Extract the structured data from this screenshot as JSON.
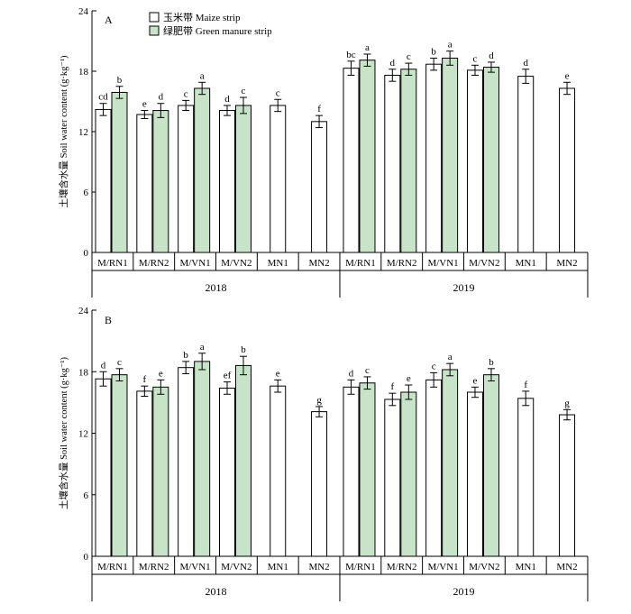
{
  "chart_data": [
    {
      "type": "bar",
      "panel_label": "A",
      "ylabel": "土壤含水量 Soil water content (g·kg⁻¹)",
      "ylim": [
        0,
        24
      ],
      "yticks": [
        0,
        6,
        12,
        18,
        24
      ],
      "grid": false,
      "legend_position": "top-left",
      "series_names": [
        "玉米带 Maize strip",
        "绿肥带 Green manure strip"
      ],
      "colors": {
        "maize": "#ffffff",
        "green_manure": "#c8e4c8"
      },
      "years": [
        {
          "label": "2018",
          "groups": [
            {
              "name": "M/RN1",
              "maize": {
                "value": 14.2,
                "error": 0.6,
                "letter": "cd"
              },
              "green": {
                "value": 15.9,
                "error": 0.6,
                "letter": "b"
              }
            },
            {
              "name": "M/RN2",
              "maize": {
                "value": 13.7,
                "error": 0.4,
                "letter": "e"
              },
              "green": {
                "value": 14.1,
                "error": 0.7,
                "letter": "d"
              }
            },
            {
              "name": "M/VN1",
              "maize": {
                "value": 14.6,
                "error": 0.5,
                "letter": "c"
              },
              "green": {
                "value": 16.3,
                "error": 0.6,
                "letter": "a"
              }
            },
            {
              "name": "M/VN2",
              "maize": {
                "value": 14.1,
                "error": 0.5,
                "letter": "d"
              },
              "green": {
                "value": 14.6,
                "error": 0.8,
                "letter": "c"
              }
            },
            {
              "name": "MN1",
              "maize": {
                "value": 14.6,
                "error": 0.6,
                "letter": "c"
              },
              "green": null
            },
            {
              "name": "MN2",
              "maize": {
                "value": 13.0,
                "error": 0.6,
                "letter": "f"
              },
              "green": null
            }
          ]
        },
        {
          "label": "2019",
          "groups": [
            {
              "name": "M/RN1",
              "maize": {
                "value": 18.3,
                "error": 0.7,
                "letter": "bc"
              },
              "green": {
                "value": 19.1,
                "error": 0.6,
                "letter": "a"
              }
            },
            {
              "name": "M/RN2",
              "maize": {
                "value": 17.6,
                "error": 0.6,
                "letter": "d"
              },
              "green": {
                "value": 18.2,
                "error": 0.6,
                "letter": "c"
              }
            },
            {
              "name": "M/VN1",
              "maize": {
                "value": 18.7,
                "error": 0.6,
                "letter": "b"
              },
              "green": {
                "value": 19.3,
                "error": 0.7,
                "letter": "a"
              }
            },
            {
              "name": "M/VN2",
              "maize": {
                "value": 18.1,
                "error": 0.5,
                "letter": "c"
              },
              "green": {
                "value": 18.4,
                "error": 0.5,
                "letter": "d"
              }
            },
            {
              "name": "MN1",
              "maize": {
                "value": 17.5,
                "error": 0.7,
                "letter": "d"
              },
              "green": null
            },
            {
              "name": "MN2",
              "maize": {
                "value": 16.3,
                "error": 0.6,
                "letter": "e"
              },
              "green": null
            }
          ]
        }
      ]
    },
    {
      "type": "bar",
      "panel_label": "B",
      "ylabel": "土壤含水量 Soil water content (g·kg⁻¹)",
      "ylim": [
        0,
        24
      ],
      "yticks": [
        0,
        6,
        12,
        18,
        24
      ],
      "grid": false,
      "colors": {
        "maize": "#ffffff",
        "green_manure": "#c8e4c8"
      },
      "years": [
        {
          "label": "2018",
          "groups": [
            {
              "name": "M/RN1",
              "maize": {
                "value": 17.3,
                "error": 0.7,
                "letter": "d"
              },
              "green": {
                "value": 17.7,
                "error": 0.6,
                "letter": "c"
              }
            },
            {
              "name": "M/RN2",
              "maize": {
                "value": 16.1,
                "error": 0.5,
                "letter": "f"
              },
              "green": {
                "value": 16.5,
                "error": 0.7,
                "letter": "e"
              }
            },
            {
              "name": "M/VN1",
              "maize": {
                "value": 18.4,
                "error": 0.6,
                "letter": "b"
              },
              "green": {
                "value": 19.0,
                "error": 0.8,
                "letter": "a"
              }
            },
            {
              "name": "M/VN2",
              "maize": {
                "value": 16.4,
                "error": 0.6,
                "letter": "ef"
              },
              "green": {
                "value": 18.6,
                "error": 0.9,
                "letter": "b"
              }
            },
            {
              "name": "MN1",
              "maize": {
                "value": 16.6,
                "error": 0.6,
                "letter": "e"
              },
              "green": null
            },
            {
              "name": "MN2",
              "maize": {
                "value": 14.1,
                "error": 0.5,
                "letter": "g"
              },
              "green": null
            }
          ]
        },
        {
          "label": "2019",
          "groups": [
            {
              "name": "M/RN1",
              "maize": {
                "value": 16.5,
                "error": 0.7,
                "letter": "d"
              },
              "green": {
                "value": 16.9,
                "error": 0.6,
                "letter": "c"
              }
            },
            {
              "name": "M/RN2",
              "maize": {
                "value": 15.3,
                "error": 0.6,
                "letter": "f"
              },
              "green": {
                "value": 16.0,
                "error": 0.7,
                "letter": "e"
              }
            },
            {
              "name": "M/VN1",
              "maize": {
                "value": 17.2,
                "error": 0.7,
                "letter": "c"
              },
              "green": {
                "value": 18.2,
                "error": 0.6,
                "letter": "a"
              }
            },
            {
              "name": "M/VN2",
              "maize": {
                "value": 16.0,
                "error": 0.5,
                "letter": "e"
              },
              "green": {
                "value": 17.7,
                "error": 0.6,
                "letter": "b"
              }
            },
            {
              "name": "MN1",
              "maize": {
                "value": 15.4,
                "error": 0.7,
                "letter": "f"
              },
              "green": null
            },
            {
              "name": "MN2",
              "maize": {
                "value": 13.8,
                "error": 0.5,
                "letter": "g"
              },
              "green": null
            }
          ]
        }
      ]
    }
  ]
}
